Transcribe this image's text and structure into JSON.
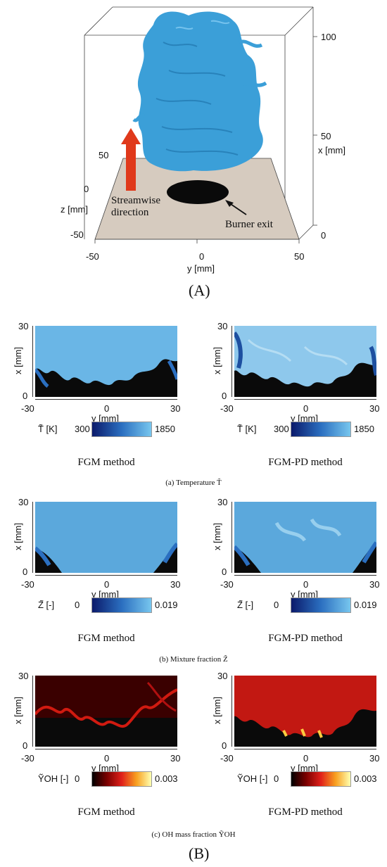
{
  "figA": {
    "label": "(A)",
    "annotation_streamwise": "Streamwise\ndirection",
    "annotation_burner": "Burner exit",
    "z_ticks": [
      "50",
      "0",
      "-50"
    ],
    "z_label": "z [mm]",
    "y_ticks": [
      "-50",
      "0",
      "50"
    ],
    "y_label": "y [mm]",
    "x_ticks": [
      "100",
      "50",
      "0"
    ],
    "x_label": "x [mm]"
  },
  "figB": {
    "label": "(B)",
    "rows": [
      {
        "caption": "(a) Temperature T̃",
        "colorbar": {
          "symbol": "T̃",
          "unit": "[K]",
          "min": "300",
          "max": "1850",
          "colors": [
            "#0b1a6b",
            "#2b6fc0",
            "#77c6ee"
          ]
        },
        "panels": [
          {
            "method": "FGM method"
          },
          {
            "method": "FGM-PD method"
          }
        ]
      },
      {
        "caption": "(b) Mixture fraction Z̃",
        "colorbar": {
          "symbol": "Z̃",
          "unit": "[-]",
          "min": "0",
          "max": "0.019",
          "colors": [
            "#0b1a6b",
            "#2b6fc0",
            "#77c6ee"
          ]
        },
        "panels": [
          {
            "method": "FGM method"
          },
          {
            "method": "FGM-PD method"
          }
        ]
      },
      {
        "caption": "(c) OH mass fraction ỸOH",
        "colorbar": {
          "symbol": "ỸOH",
          "unit": "[-]",
          "min": "0",
          "max": "0.003",
          "colors": [
            "#000000",
            "#7a0000",
            "#e0201a",
            "#f8a020",
            "#ffffb0"
          ]
        },
        "panels": [
          {
            "method": "FGM method"
          },
          {
            "method": "FGM-PD method"
          }
        ]
      }
    ],
    "x_ticks": [
      "30",
      "0"
    ],
    "x_label": "x [mm]",
    "y_ticks": [
      "-30",
      "0",
      "30"
    ],
    "y_label": "y [mm]"
  },
  "colors": {
    "flame_blue": "#3b9fd8",
    "floor": "#d6cbbf",
    "arrow_red": "#e0391b"
  }
}
